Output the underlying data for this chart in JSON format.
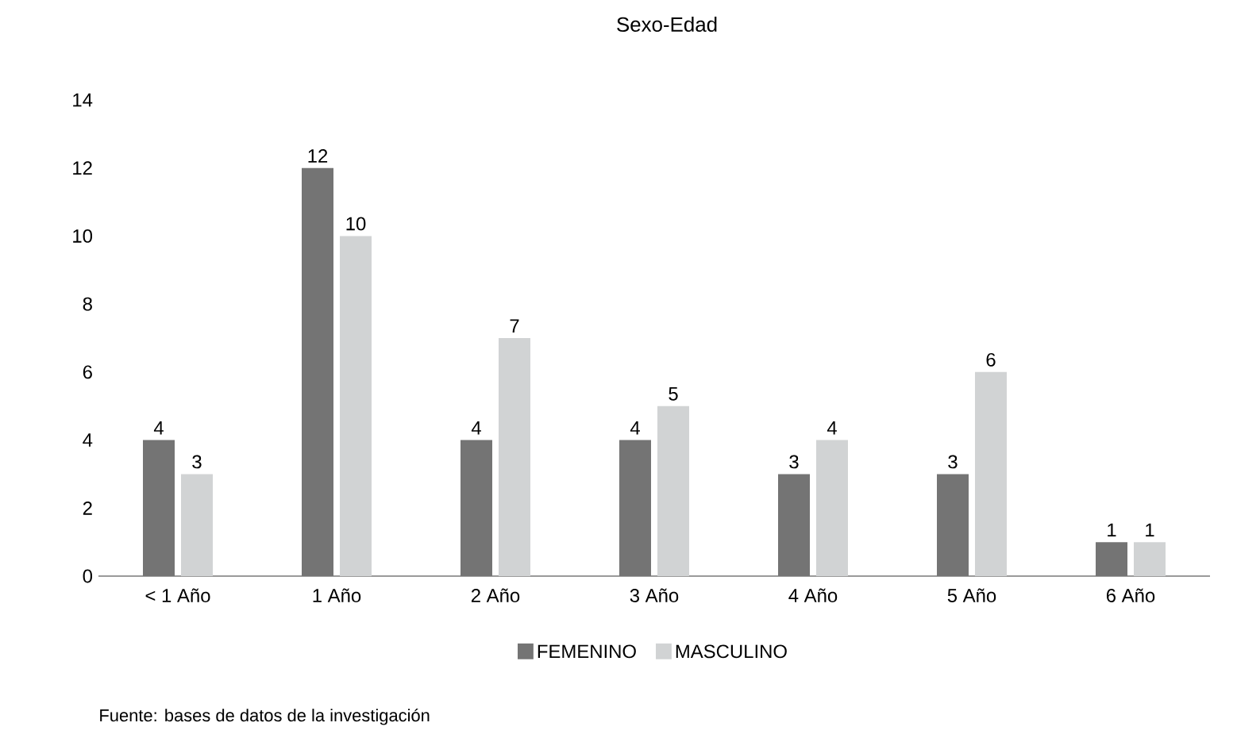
{
  "chart_data": {
    "type": "bar",
    "title": "Sexo-Edad",
    "categories": [
      "< 1 Año",
      "1 Año",
      "2 Año",
      "3 Año",
      "4 Año",
      "5 Año",
      "6 Año"
    ],
    "series": [
      {
        "name": "FEMENINO",
        "color": "#747474",
        "values": [
          4,
          12,
          4,
          4,
          3,
          3,
          1
        ]
      },
      {
        "name": "MASCULINO",
        "color": "#d1d3d4",
        "values": [
          3,
          10,
          7,
          5,
          4,
          6,
          1
        ]
      }
    ],
    "ylim": [
      0,
      14
    ],
    "yticks": [
      0,
      2,
      4,
      6,
      8,
      10,
      12,
      14
    ],
    "data_labels": true,
    "grid": false,
    "legend": "bottom",
    "annotations": [
      "Fuente: bases de datos de la investigación"
    ]
  }
}
